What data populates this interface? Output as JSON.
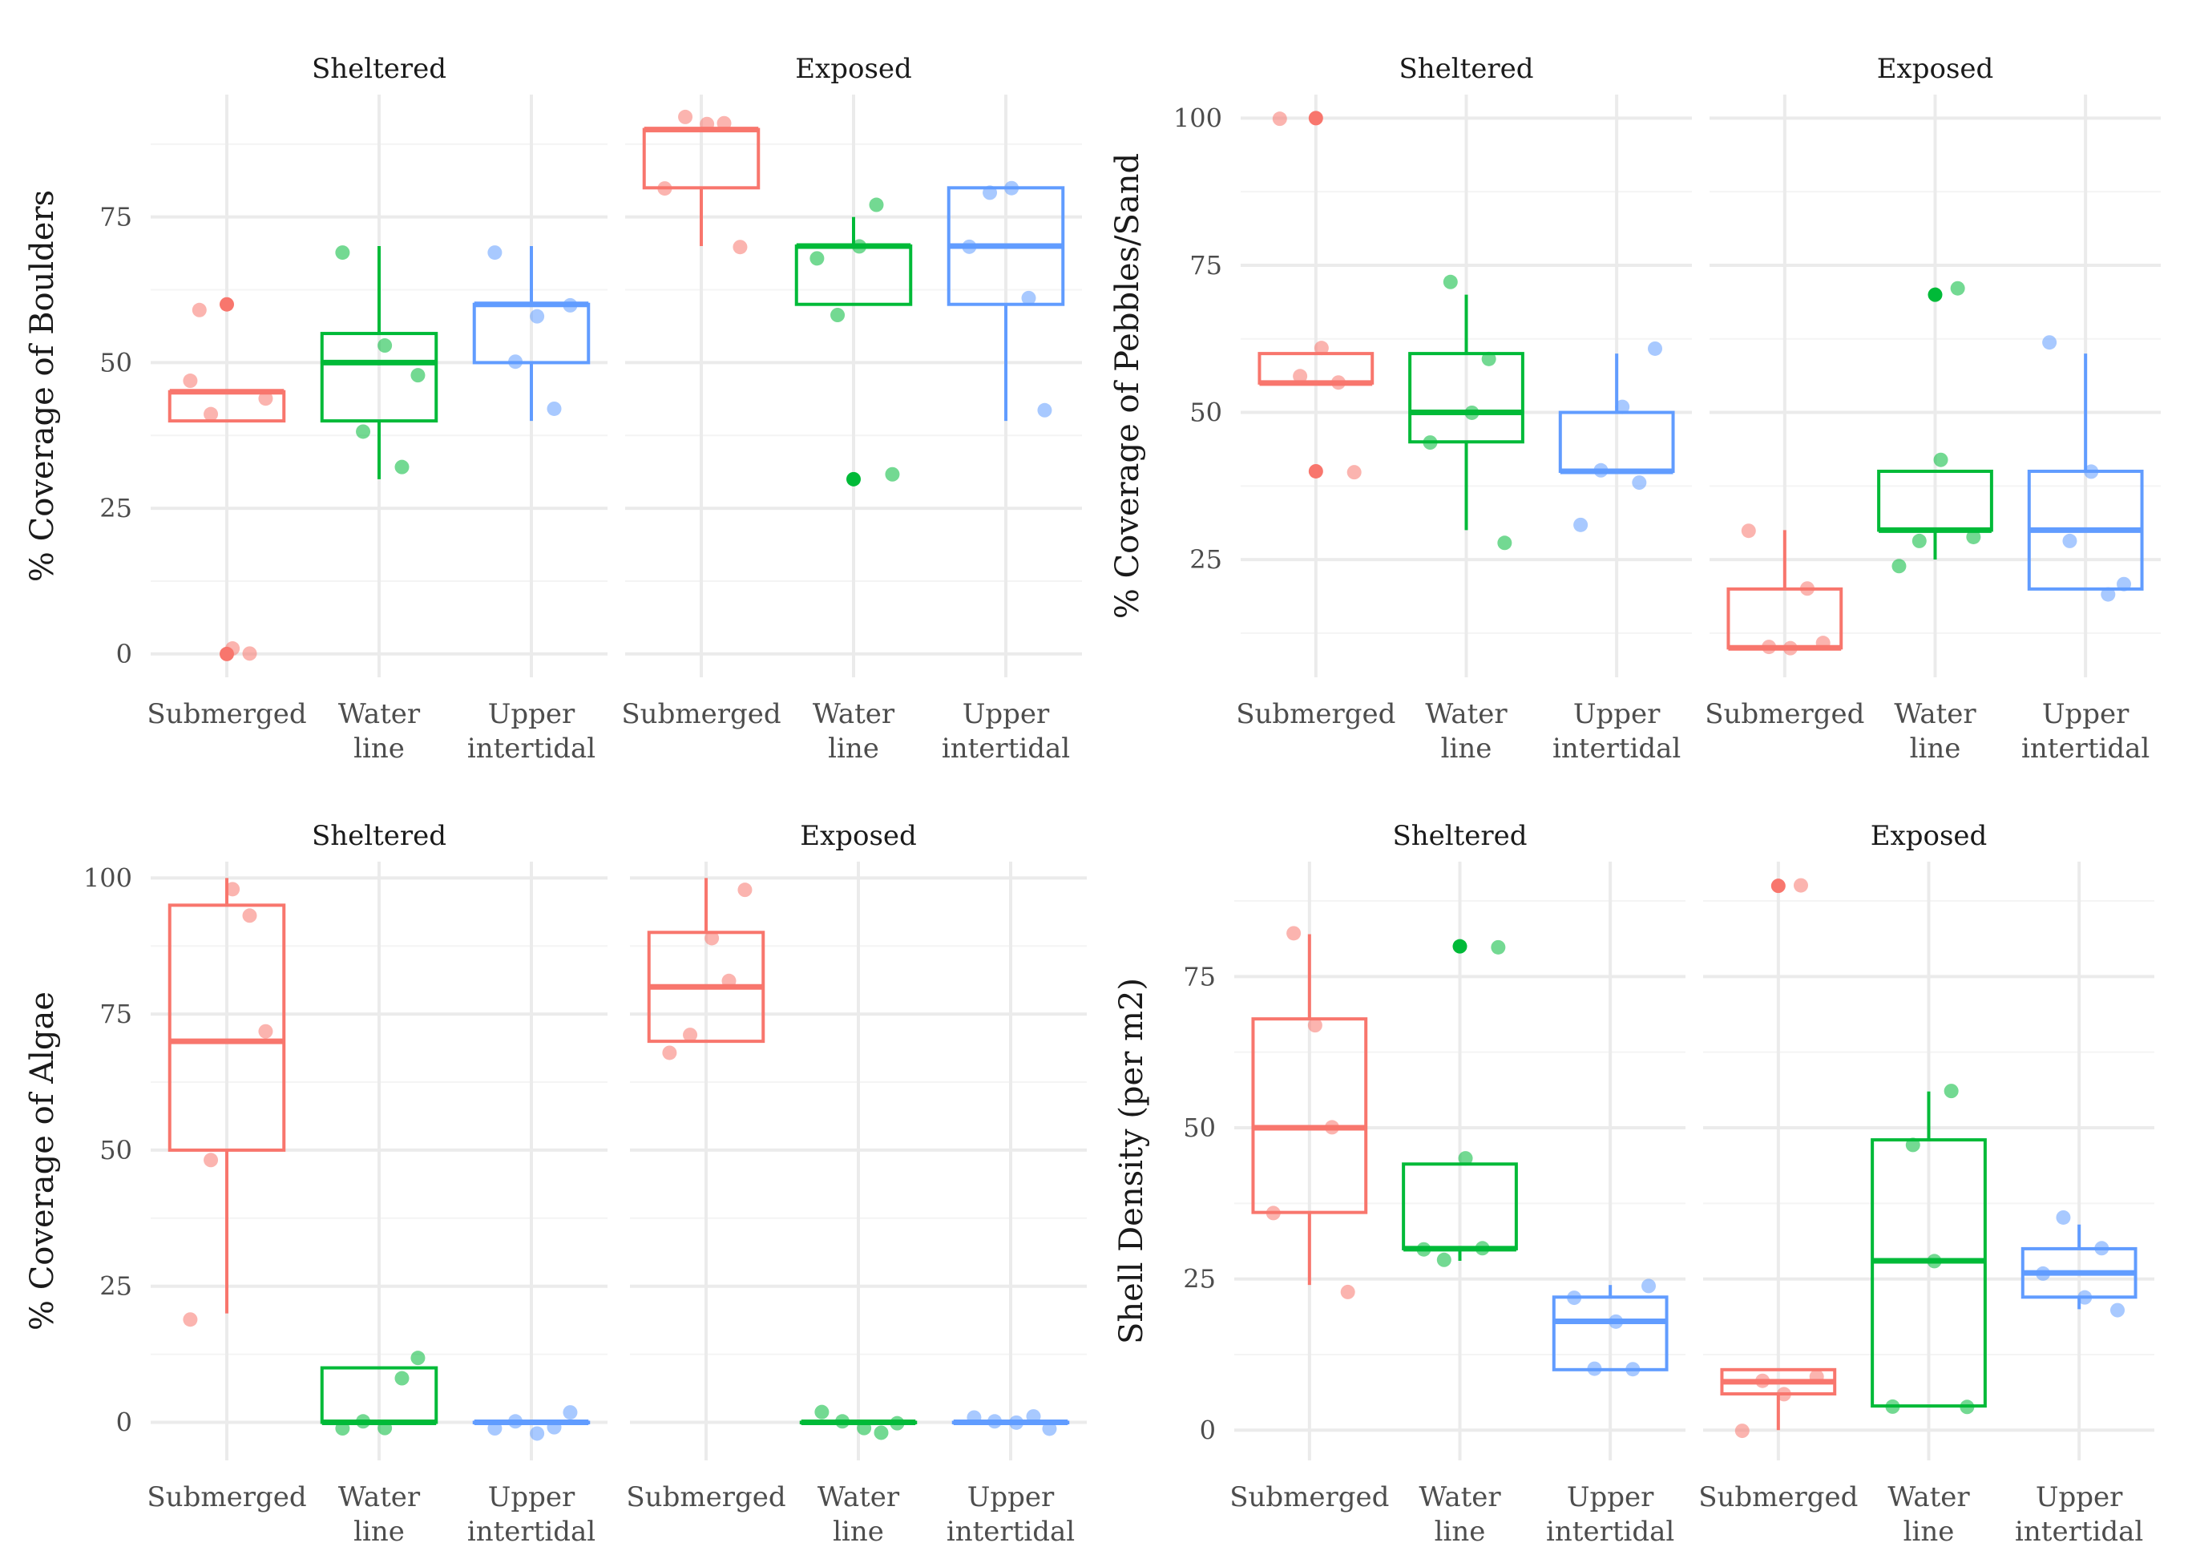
{
  "colors": {
    "Submerged": "#F8766D",
    "Water line": "#00BA38",
    "Upper intertidal": "#619CFF",
    "grid_major": "#EBEBEB",
    "grid_minor": "#F4F4F4",
    "text": "#4D4D4D",
    "strip": "#1A1A1A"
  },
  "chart_data": [
    {
      "type": "box",
      "ylabel": "% Coverage of Boulders",
      "ylim": [
        -4,
        96
      ],
      "yticks": [
        0,
        25,
        50,
        75
      ],
      "panels": [
        {
          "strip": "Sheltered",
          "groups": [
            {
              "label": [
                "Submerged"
              ],
              "key": "Submerged",
              "box": [
                40,
                45,
                45
              ],
              "whisker": [
                40,
                45
              ],
              "outliers": [
                0,
                60
              ],
              "points": [
                47,
                41,
                1,
                0,
                44,
                59
              ]
            },
            {
              "label": [
                "Water",
                "line"
              ],
              "key": "Water line",
              "box": [
                40,
                50,
                55
              ],
              "whisker": [
                30,
                70
              ],
              "outliers": [],
              "points": [
                69,
                38,
                53,
                32,
                48
              ]
            },
            {
              "label": [
                "Upper",
                "intertidal"
              ],
              "key": "Upper intertidal",
              "box": [
                50,
                60,
                60
              ],
              "whisker": [
                40,
                70
              ],
              "outliers": [],
              "points": [
                69,
                50,
                58,
                42,
                60
              ]
            }
          ]
        },
        {
          "strip": "Exposed",
          "groups": [
            {
              "label": [
                "Submerged"
              ],
              "key": "Submerged",
              "box": [
                80,
                90,
                90
              ],
              "whisker": [
                70,
                90
              ],
              "outliers": [],
              "points": [
                80,
                92,
                91,
                91,
                70
              ]
            },
            {
              "label": [
                "Water",
                "line"
              ],
              "key": "Water line",
              "box": [
                60,
                70,
                70
              ],
              "whisker": [
                60,
                75
              ],
              "outliers": [
                30
              ],
              "points": [
                68,
                58,
                70,
                77,
                31
              ]
            },
            {
              "label": [
                "Upper",
                "intertidal"
              ],
              "key": "Upper intertidal",
              "box": [
                60,
                70,
                80
              ],
              "whisker": [
                40,
                80
              ],
              "outliers": [],
              "points": [
                70,
                79,
                80,
                61,
                42
              ]
            }
          ]
        }
      ]
    },
    {
      "type": "box",
      "ylabel": "% Coverage of Pebbles/Sand",
      "ylim": [
        5,
        104
      ],
      "yticks": [
        25,
        50,
        75,
        100
      ],
      "panels": [
        {
          "strip": "Sheltered",
          "groups": [
            {
              "label": [
                "Submerged"
              ],
              "key": "Submerged",
              "box": [
                55,
                55,
                60
              ],
              "whisker": [
                55,
                60
              ],
              "outliers": [
                40,
                100
              ],
              "points": [
                100,
                56,
                61,
                55,
                40
              ]
            },
            {
              "label": [
                "Water",
                "line"
              ],
              "key": "Water line",
              "box": [
                45,
                50,
                60
              ],
              "whisker": [
                30,
                70
              ],
              "outliers": [],
              "points": [
                45,
                72,
                50,
                59,
                28
              ]
            },
            {
              "label": [
                "Upper",
                "intertidal"
              ],
              "key": "Upper intertidal",
              "box": [
                40,
                40,
                50
              ],
              "whisker": [
                40,
                60
              ],
              "outliers": [],
              "points": [
                31,
                40,
                51,
                38,
                61
              ]
            }
          ]
        },
        {
          "strip": "Exposed",
          "groups": [
            {
              "label": [
                "Submerged"
              ],
              "key": "Submerged",
              "box": [
                10,
                10,
                20
              ],
              "whisker": [
                10,
                30
              ],
              "outliers": [],
              "points": [
                30,
                10,
                10,
                20,
                11
              ]
            },
            {
              "label": [
                "Water",
                "line"
              ],
              "key": "Water line",
              "box": [
                30,
                30,
                40
              ],
              "whisker": [
                25,
                40
              ],
              "outliers": [
                70
              ],
              "points": [
                24,
                28,
                42,
                71,
                29
              ]
            },
            {
              "label": [
                "Upper",
                "intertidal"
              ],
              "key": "Upper intertidal",
              "box": [
                20,
                30,
                40
              ],
              "whisker": [
                20,
                60
              ],
              "outliers": [],
              "points": [
                62,
                28,
                40,
                19,
                21
              ]
            }
          ]
        }
      ]
    },
    {
      "type": "box",
      "ylabel": "% Coverage of Algae",
      "ylim": [
        -7,
        103
      ],
      "yticks": [
        0,
        25,
        50,
        75,
        100
      ],
      "panels": [
        {
          "strip": "Sheltered",
          "groups": [
            {
              "label": [
                "Submerged"
              ],
              "key": "Submerged",
              "box": [
                50,
                70,
                95
              ],
              "whisker": [
                20,
                100
              ],
              "outliers": [],
              "points": [
                19,
                48,
                98,
                93,
                72
              ]
            },
            {
              "label": [
                "Water",
                "line"
              ],
              "key": "Water line",
              "box": [
                0,
                0,
                10
              ],
              "whisker": [
                0,
                10
              ],
              "outliers": [],
              "points": [
                -1,
                0,
                -1,
                8,
                12
              ]
            },
            {
              "label": [
                "Upper",
                "intertidal"
              ],
              "key": "Upper intertidal",
              "box": [
                0,
                0,
                0
              ],
              "whisker": [
                0,
                0
              ],
              "outliers": [],
              "points": [
                -1,
                0,
                -2,
                -1,
                2
              ]
            }
          ]
        },
        {
          "strip": "Exposed",
          "groups": [
            {
              "label": [
                "Submerged"
              ],
              "key": "Submerged",
              "box": [
                70,
                80,
                90
              ],
              "whisker": [
                70,
                100
              ],
              "outliers": [],
              "points": [
                68,
                71,
                89,
                81,
                98
              ]
            },
            {
              "label": [
                "Water",
                "line"
              ],
              "key": "Water line",
              "box": [
                0,
                0,
                0
              ],
              "whisker": [
                0,
                0
              ],
              "outliers": [],
              "points": [
                2,
                0,
                -1,
                -2,
                0
              ]
            },
            {
              "label": [
                "Upper",
                "intertidal"
              ],
              "key": "Upper intertidal",
              "box": [
                0,
                0,
                0
              ],
              "whisker": [
                0,
                0
              ],
              "outliers": [],
              "points": [
                1,
                0,
                0,
                1,
                -1
              ]
            }
          ]
        }
      ]
    },
    {
      "type": "box",
      "ylabel": "Shell Density (per m2)",
      "ylim": [
        -5,
        94
      ],
      "yticks": [
        0,
        25,
        50,
        75
      ],
      "panels": [
        {
          "strip": "Sheltered",
          "groups": [
            {
              "label": [
                "Submerged"
              ],
              "key": "Submerged",
              "box": [
                36,
                50,
                68
              ],
              "whisker": [
                24,
                82
              ],
              "outliers": [],
              "points": [
                36,
                82,
                67,
                50,
                23
              ]
            },
            {
              "label": [
                "Water",
                "line"
              ],
              "key": "Water line",
              "box": [
                30,
                30,
                44
              ],
              "whisker": [
                28,
                44
              ],
              "outliers": [
                80
              ],
              "points": [
                30,
                28,
                45,
                30,
                80
              ]
            },
            {
              "label": [
                "Upper",
                "intertidal"
              ],
              "key": "Upper intertidal",
              "box": [
                10,
                18,
                22
              ],
              "whisker": [
                10,
                24
              ],
              "outliers": [],
              "points": [
                22,
                10,
                18,
                10,
                24
              ]
            }
          ]
        },
        {
          "strip": "Exposed",
          "groups": [
            {
              "label": [
                "Submerged"
              ],
              "key": "Submerged",
              "box": [
                6,
                8,
                10
              ],
              "whisker": [
                0,
                10
              ],
              "outliers": [
                90
              ],
              "points": [
                0,
                8,
                6,
                90,
                9
              ]
            },
            {
              "label": [
                "Water",
                "line"
              ],
              "key": "Water line",
              "box": [
                4,
                28,
                48
              ],
              "whisker": [
                4,
                56
              ],
              "outliers": [],
              "points": [
                4,
                47,
                28,
                56,
                4
              ]
            },
            {
              "label": [
                "Upper",
                "intertidal"
              ],
              "key": "Upper intertidal",
              "box": [
                22,
                26,
                30
              ],
              "whisker": [
                20,
                34
              ],
              "outliers": [],
              "points": [
                26,
                35,
                22,
                30,
                20
              ]
            }
          ]
        }
      ]
    }
  ]
}
